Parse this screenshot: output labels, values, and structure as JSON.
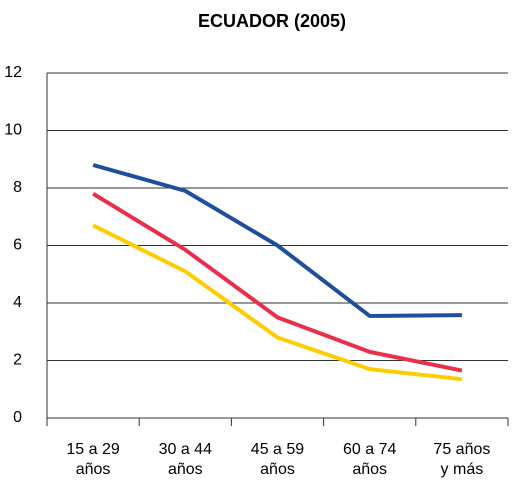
{
  "chart_data": {
    "type": "line",
    "title": "ECUADOR (2005)",
    "categories": [
      "15 a 29 años",
      "30 a 44 años",
      "45 a 59 años",
      "60 a 74 años",
      "75 años y más"
    ],
    "series": [
      {
        "color": "#1f4e9c",
        "values": [
          8.8,
          7.9,
          6.0,
          3.55,
          3.58
        ]
      },
      {
        "color": "#e8304a",
        "values": [
          7.8,
          5.85,
          3.5,
          2.3,
          1.65
        ]
      },
      {
        "color": "#ffcc00",
        "values": [
          6.7,
          5.1,
          2.8,
          1.7,
          1.35
        ]
      }
    ],
    "ylim": [
      0,
      12
    ],
    "yticks": [
      0,
      2,
      4,
      6,
      8,
      10,
      12
    ],
    "grid": true
  }
}
